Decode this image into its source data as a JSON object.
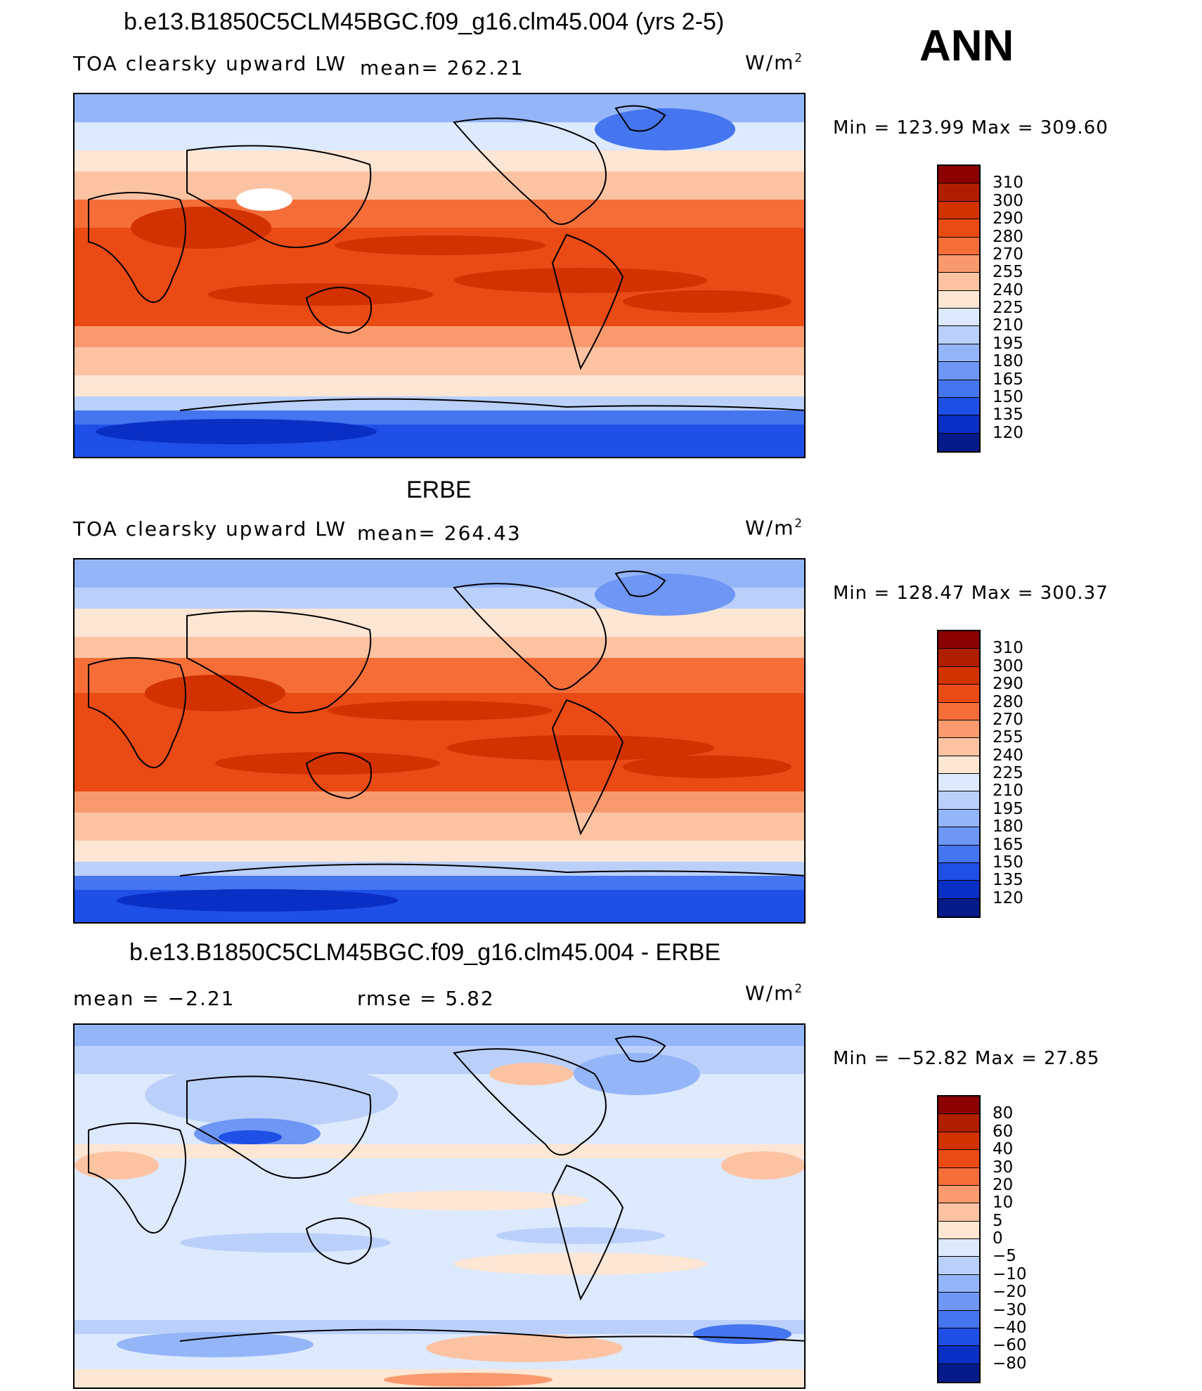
{
  "header": {
    "season": "ANN"
  },
  "panels": [
    {
      "title": "b.e13.B1850C5CLM45BGC.f09_g16.clm45.004 (yrs 2-5)",
      "left_label": "TOA clearsky upward LW",
      "center_label": "mean= 262.21",
      "units": "W/m",
      "units_sup": "2",
      "minmax": "Min  =  123.99  Max  =  309.60",
      "colorbar": {
        "levels": [
          "310",
          "300",
          "290",
          "280",
          "270",
          "255",
          "240",
          "225",
          "210",
          "195",
          "180",
          "165",
          "150",
          "135",
          "120"
        ],
        "colors": [
          "#8b0000",
          "#b01e00",
          "#d23200",
          "#ea4a14",
          "#f56e38",
          "#f99a6e",
          "#fcc3a3",
          "#fde6d4",
          "#dde9fc",
          "#bad0fb",
          "#95b5f9",
          "#6e96f4",
          "#4575ef",
          "#1e4fe6",
          "#0a2fc4",
          "#061a8a"
        ]
      }
    },
    {
      "title": "ERBE",
      "left_label": "TOA clearsky upward LW",
      "center_label": "mean= 264.43",
      "units": "W/m",
      "units_sup": "2",
      "minmax": "Min  =  128.47  Max  =  300.37",
      "colorbar": {
        "levels": [
          "310",
          "300",
          "290",
          "280",
          "270",
          "255",
          "240",
          "225",
          "210",
          "195",
          "180",
          "165",
          "150",
          "135",
          "120"
        ],
        "colors": [
          "#8b0000",
          "#b01e00",
          "#d23200",
          "#ea4a14",
          "#f56e38",
          "#f99a6e",
          "#fcc3a3",
          "#fde6d4",
          "#dde9fc",
          "#bad0fb",
          "#95b5f9",
          "#6e96f4",
          "#4575ef",
          "#1e4fe6",
          "#0a2fc4",
          "#061a8a"
        ]
      }
    },
    {
      "title": "b.e13.B1850C5CLM45BGC.f09_g16.clm45.004 - ERBE",
      "left_label": "mean  =    −2.21",
      "center_label": "rmse  =     5.82",
      "units": "W/m",
      "units_sup": "2",
      "minmax": "Min  =  −52.82  Max  =    27.85",
      "colorbar": {
        "levels": [
          "80",
          "60",
          "40",
          "30",
          "20",
          "10",
          "5",
          "0",
          "−5",
          "−10",
          "−20",
          "−30",
          "−40",
          "−60",
          "−80"
        ],
        "colors": [
          "#8b0000",
          "#b01e00",
          "#d23200",
          "#ea4a14",
          "#f56e38",
          "#f99a6e",
          "#fcc3a3",
          "#fde6d4",
          "#dde9fc",
          "#bad0fb",
          "#95b5f9",
          "#6e96f4",
          "#4575ef",
          "#1e4fe6",
          "#0a2fc4",
          "#061a8a"
        ]
      }
    }
  ]
}
